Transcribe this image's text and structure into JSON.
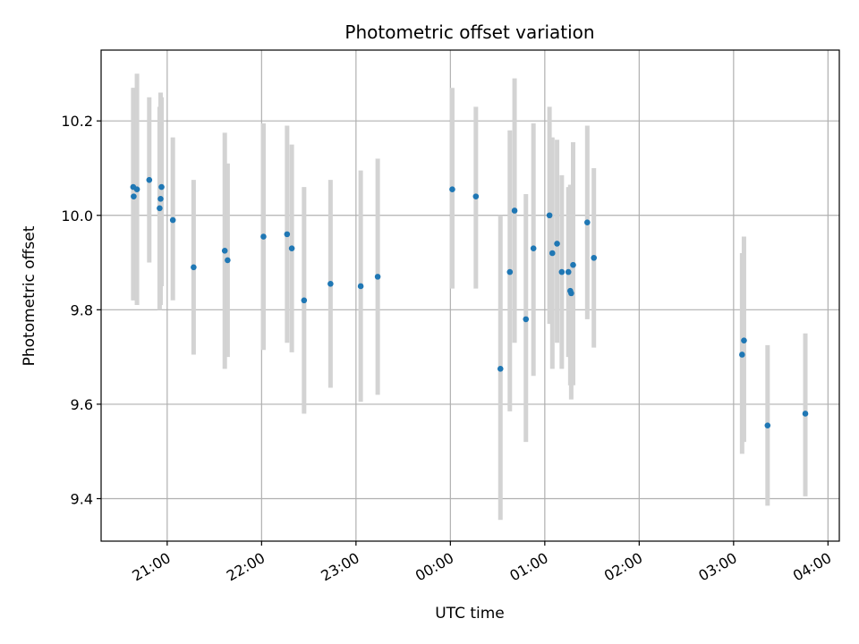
{
  "chart_data": {
    "type": "scatter",
    "title": "Photometric offset variation",
    "xlabel": "UTC time",
    "ylabel": "Photometric offset",
    "grid": true,
    "x_unit": "hours since 00:00 UTC",
    "xlim": [
      -3.7,
      4.12
    ],
    "ylim": [
      9.31,
      10.35
    ],
    "x_ticks": [
      {
        "value": -3,
        "label": "21:00"
      },
      {
        "value": -2,
        "label": "22:00"
      },
      {
        "value": -1,
        "label": "23:00"
      },
      {
        "value": 0,
        "label": "00:00"
      },
      {
        "value": 1,
        "label": "01:00"
      },
      {
        "value": 2,
        "label": "02:00"
      },
      {
        "value": 3,
        "label": "03:00"
      },
      {
        "value": 4,
        "label": "04:00"
      }
    ],
    "y_ticks": [
      {
        "value": 9.4,
        "label": "9.4"
      },
      {
        "value": 9.6,
        "label": "9.6"
      },
      {
        "value": 9.8,
        "label": "9.8"
      },
      {
        "value": 10.0,
        "label": "10.0"
      },
      {
        "value": 10.2,
        "label": "10.2"
      }
    ],
    "marker_color": "#1f77b4",
    "errorbar_color": "#d3d3d3",
    "points": [
      {
        "x": -3.36,
        "y": 10.06,
        "lo": 9.82,
        "hi": 10.27
      },
      {
        "x": -3.355,
        "y": 10.04,
        "lo": 9.82,
        "hi": 10.27
      },
      {
        "x": -3.32,
        "y": 10.055,
        "lo": 9.81,
        "hi": 10.3
      },
      {
        "x": -3.19,
        "y": 10.075,
        "lo": 9.9,
        "hi": 10.25
      },
      {
        "x": -3.08,
        "y": 10.015,
        "lo": 9.8,
        "hi": 10.23
      },
      {
        "x": -3.07,
        "y": 10.035,
        "lo": 9.81,
        "hi": 10.26
      },
      {
        "x": -3.06,
        "y": 10.06,
        "lo": 9.85,
        "hi": 10.25
      },
      {
        "x": -2.94,
        "y": 9.99,
        "lo": 9.82,
        "hi": 10.165
      },
      {
        "x": -2.72,
        "y": 9.89,
        "lo": 9.705,
        "hi": 10.075
      },
      {
        "x": -2.39,
        "y": 9.925,
        "lo": 9.675,
        "hi": 10.175
      },
      {
        "x": -2.36,
        "y": 9.905,
        "lo": 9.7,
        "hi": 10.11
      },
      {
        "x": -1.98,
        "y": 9.955,
        "lo": 9.715,
        "hi": 10.195
      },
      {
        "x": -1.73,
        "y": 9.96,
        "lo": 9.73,
        "hi": 10.19
      },
      {
        "x": -1.68,
        "y": 9.93,
        "lo": 9.71,
        "hi": 10.15
      },
      {
        "x": -1.55,
        "y": 9.82,
        "lo": 9.58,
        "hi": 10.06
      },
      {
        "x": -1.27,
        "y": 9.855,
        "lo": 9.635,
        "hi": 10.075
      },
      {
        "x": -0.95,
        "y": 9.85,
        "lo": 9.605,
        "hi": 10.095
      },
      {
        "x": -0.77,
        "y": 9.87,
        "lo": 9.62,
        "hi": 10.12
      },
      {
        "x": 0.02,
        "y": 10.055,
        "lo": 9.845,
        "hi": 10.27
      },
      {
        "x": 0.27,
        "y": 10.04,
        "lo": 9.845,
        "hi": 10.23
      },
      {
        "x": 0.53,
        "y": 9.675,
        "lo": 9.355,
        "hi": 10.0
      },
      {
        "x": 0.63,
        "y": 9.88,
        "lo": 9.585,
        "hi": 10.18
      },
      {
        "x": 0.68,
        "y": 10.01,
        "lo": 9.73,
        "hi": 10.29
      },
      {
        "x": 0.8,
        "y": 9.78,
        "lo": 9.52,
        "hi": 10.045
      },
      {
        "x": 0.88,
        "y": 9.93,
        "lo": 9.66,
        "hi": 10.195
      },
      {
        "x": 1.05,
        "y": 10.0,
        "lo": 9.77,
        "hi": 10.23
      },
      {
        "x": 1.08,
        "y": 9.92,
        "lo": 9.675,
        "hi": 10.165
      },
      {
        "x": 1.13,
        "y": 9.94,
        "lo": 9.73,
        "hi": 10.16
      },
      {
        "x": 1.18,
        "y": 9.88,
        "lo": 9.675,
        "hi": 10.085
      },
      {
        "x": 1.25,
        "y": 9.88,
        "lo": 9.7,
        "hi": 10.06
      },
      {
        "x": 1.27,
        "y": 9.84,
        "lo": 9.64,
        "hi": 10.065
      },
      {
        "x": 1.28,
        "y": 9.835,
        "lo": 9.61,
        "hi": 10.065
      },
      {
        "x": 1.3,
        "y": 9.895,
        "lo": 9.64,
        "hi": 10.155
      },
      {
        "x": 1.45,
        "y": 9.985,
        "lo": 9.78,
        "hi": 10.19
      },
      {
        "x": 1.52,
        "y": 9.91,
        "lo": 9.72,
        "hi": 10.1
      },
      {
        "x": 3.09,
        "y": 9.705,
        "lo": 9.495,
        "hi": 9.92
      },
      {
        "x": 3.11,
        "y": 9.735,
        "lo": 9.52,
        "hi": 9.955
      },
      {
        "x": 3.36,
        "y": 9.555,
        "lo": 9.385,
        "hi": 9.725
      },
      {
        "x": 3.76,
        "y": 9.58,
        "lo": 9.405,
        "hi": 9.75
      }
    ]
  }
}
